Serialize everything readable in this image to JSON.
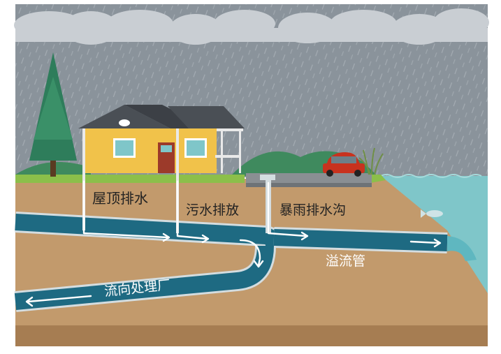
{
  "labels": {
    "roof_drainage": "屋顶排水",
    "sewage_discharge": "污水排放",
    "storm_drain": "暴雨排水沟",
    "overflow_pipe": "溢流管",
    "flow_to_treatment": "流向处理厂"
  },
  "colors": {
    "sky": "#8a939b",
    "cloud": "#c9ced3",
    "soil": "#c29a6c",
    "soil_dark": "#a67d52",
    "grass": "#8cbf4a",
    "pipe": "#1e6a82",
    "pipe_edge": "#d4dde0",
    "water": "#7fc6c9",
    "house": "#f1c24a",
    "roof": "#4a4f55",
    "car": "#c8321e",
    "tree": "#2e7d5b",
    "arrow": "#ffffff"
  },
  "icons": [
    "tree-icon",
    "house-icon",
    "car-icon",
    "fish-icon",
    "cloud-icon",
    "reeds-icon"
  ]
}
